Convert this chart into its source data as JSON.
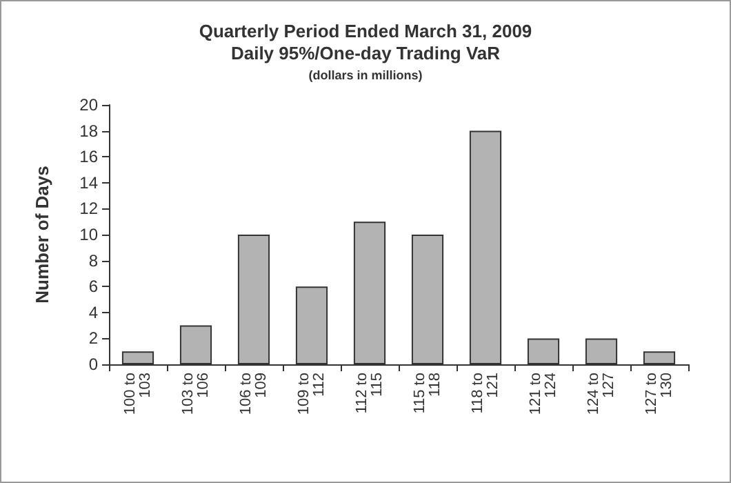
{
  "chart_data": {
    "type": "bar",
    "title": "Quarterly Period Ended March 31, 2009",
    "subtitle": "Daily 95%/One-day Trading VaR",
    "annotations": [
      "(dollars in millions)"
    ],
    "ylabel": "Number of Days",
    "categories": [
      "100 to 103",
      "103 to 106",
      "106 to 109",
      "109 to 112",
      "112 to 115",
      "115 to 118",
      "118 to 121",
      "121 to 124",
      "124 to 127",
      "127 to 130"
    ],
    "values": [
      1,
      3,
      10,
      6,
      11,
      10,
      18,
      2,
      2,
      1
    ],
    "color": "#b3b3b3",
    "ylim": [
      0,
      20
    ],
    "yticks": [
      0,
      2,
      4,
      6,
      8,
      10,
      12,
      14,
      16,
      18,
      20
    ],
    "grid": false
  }
}
